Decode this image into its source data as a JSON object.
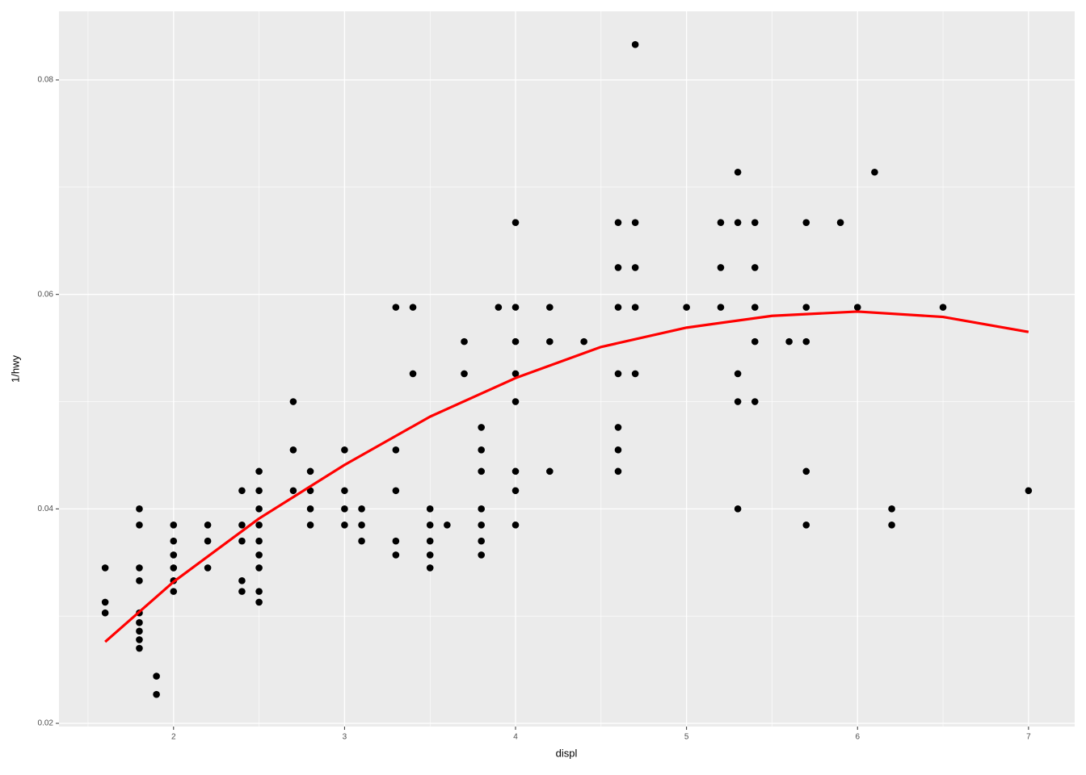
{
  "chart_data": {
    "type": "scatter",
    "x_label": "displ",
    "y_label": "1/hwy",
    "xlim": [
      1.33,
      7.27
    ],
    "ylim": [
      0.0197,
      0.0864
    ],
    "xticks": [
      2,
      3,
      4,
      5,
      6,
      7
    ],
    "yticks": [
      0.02,
      0.04,
      0.06,
      0.08
    ],
    "grid": true,
    "series": [
      {
        "color": "#000000",
        "x": [
          1.6,
          1.6,
          1.6,
          1.8,
          1.8,
          1.8,
          1.8,
          1.8,
          1.8,
          1.8,
          1.8,
          1.8,
          1.9,
          1.9,
          2,
          2,
          2,
          2,
          2,
          2,
          2.2,
          2.2,
          2.2,
          2.4,
          2.4,
          2.4,
          2.4,
          2.4,
          2.5,
          2.5,
          2.5,
          2.5,
          2.5,
          2.5,
          2.5,
          2.5,
          2.5,
          2.7,
          2.7,
          2.7,
          2.8,
          2.8,
          2.8,
          2.8,
          3,
          3,
          3,
          3,
          3.1,
          3.1,
          3.1,
          3.3,
          3.3,
          3.3,
          3.3,
          3.3,
          3.4,
          3.4,
          3.5,
          3.5,
          3.5,
          3.5,
          3.5,
          3.6,
          3.7,
          3.7,
          3.8,
          3.8,
          3.8,
          3.8,
          3.8,
          3.8,
          3.8,
          3.9,
          4,
          4,
          4,
          4,
          4,
          4,
          4,
          4,
          4.2,
          4.2,
          4.2,
          4.4,
          4.6,
          4.6,
          4.6,
          4.6,
          4.6,
          4.6,
          4.6,
          4.7,
          4.7,
          4.7,
          4.7,
          4.7,
          5,
          5.2,
          5.2,
          5.2,
          5.3,
          5.3,
          5.3,
          5.3,
          5.3,
          5.4,
          5.4,
          5.4,
          5.4,
          5.4,
          5.6,
          5.7,
          5.7,
          5.7,
          5.7,
          5.7,
          5.9,
          6,
          6.1,
          6.2,
          6.2,
          6.5,
          7
        ],
        "values": [
          0.0345,
          0.0313,
          0.0303,
          0.04,
          0.0385,
          0.0345,
          0.0333,
          0.0303,
          0.0294,
          0.0286,
          0.0278,
          0.027,
          0.0244,
          0.0227,
          0.0385,
          0.037,
          0.0357,
          0.0345,
          0.0333,
          0.0323,
          0.0385,
          0.037,
          0.0345,
          0.0417,
          0.0385,
          0.037,
          0.0333,
          0.0323,
          0.0435,
          0.0417,
          0.04,
          0.0385,
          0.037,
          0.0357,
          0.0345,
          0.0323,
          0.0313,
          0.05,
          0.0455,
          0.0417,
          0.0435,
          0.0417,
          0.04,
          0.0385,
          0.0455,
          0.0417,
          0.04,
          0.0385,
          0.04,
          0.0385,
          0.037,
          0.0588,
          0.0455,
          0.0417,
          0.037,
          0.0357,
          0.0588,
          0.0526,
          0.04,
          0.0385,
          0.037,
          0.0357,
          0.0345,
          0.0385,
          0.0556,
          0.0526,
          0.0476,
          0.0455,
          0.0435,
          0.04,
          0.0385,
          0.037,
          0.0357,
          0.0588,
          0.0667,
          0.0588,
          0.0556,
          0.0526,
          0.05,
          0.0435,
          0.0417,
          0.0385,
          0.0588,
          0.0556,
          0.0435,
          0.0556,
          0.0667,
          0.0625,
          0.0588,
          0.0526,
          0.0476,
          0.0455,
          0.0435,
          0.0833,
          0.0667,
          0.0625,
          0.0588,
          0.0526,
          0.0588,
          0.0667,
          0.0625,
          0.0588,
          0.0714,
          0.0667,
          0.0526,
          0.05,
          0.04,
          0.0667,
          0.0625,
          0.0588,
          0.0556,
          0.05,
          0.0556,
          0.0667,
          0.0588,
          0.0556,
          0.0435,
          0.0385,
          0.0667,
          0.0588,
          0.0714,
          0.04,
          0.0385,
          0.0588,
          0.0417
        ]
      },
      {
        "type": "line",
        "color": "#ff0000",
        "x": [
          1.6,
          2,
          2.5,
          3,
          3.5,
          4,
          4.5,
          5,
          5.5,
          6,
          6.5,
          7
        ],
        "values": [
          0.0276,
          0.0332,
          0.0391,
          0.0441,
          0.0486,
          0.0522,
          0.0551,
          0.0569,
          0.058,
          0.0584,
          0.0579,
          0.0565
        ]
      }
    ]
  }
}
